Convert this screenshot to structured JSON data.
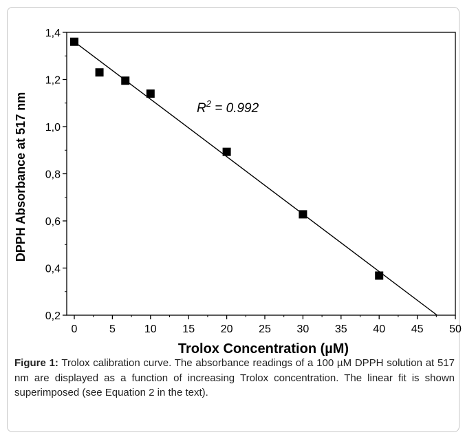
{
  "chart_data": {
    "type": "scatter",
    "xlabel": "Trolox Concentration (µM)",
    "ylabel": "DPPH Absorbance at 517 nm",
    "xlim": [
      0,
      50
    ],
    "ylim": [
      0.2,
      1.4
    ],
    "xticks": [
      0,
      5,
      10,
      15,
      20,
      25,
      30,
      35,
      40,
      45,
      50
    ],
    "yticks": [
      "0,2",
      "0,4",
      "0,6",
      "0,8",
      "1,0",
      "1,2",
      "1,4"
    ],
    "series": [
      {
        "marker": "square",
        "x": [
          0,
          3.3,
          6.7,
          10,
          20,
          30,
          40
        ],
        "y": [
          1.36,
          1.23,
          1.195,
          1.14,
          0.893,
          0.628,
          0.368
        ]
      }
    ],
    "fit_line": {
      "x": [
        0,
        47.6
      ],
      "y": [
        1.36,
        0.2
      ]
    },
    "annotation": {
      "r": "R",
      "sup": "2",
      "rest": " = 0.992"
    },
    "colors": {
      "marker": "#000000",
      "line": "#000000",
      "axes": "#000000"
    }
  },
  "caption": {
    "label": "Figure 1:",
    "text": " Trolox calibration curve. The absorbance readings of a 100 µM DPPH solution at 517 nm are displayed as a function of increasing Trolox concentration. The linear fit is shown superimposed (see Equation 2 in the text)."
  }
}
